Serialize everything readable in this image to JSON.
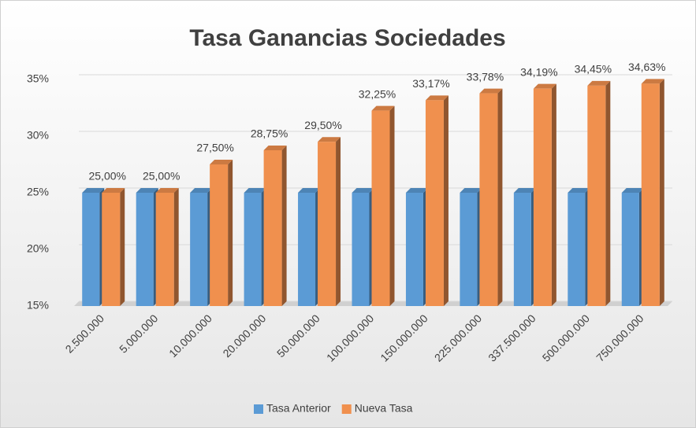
{
  "chart_data": {
    "type": "bar3d",
    "title": "Tasa Ganancias Sociedades",
    "categories": [
      "2.500.000",
      "5.000.000",
      "10.000.000",
      "20.000.000",
      "50.000.000",
      "100.000.000",
      "150.000.000",
      "225.000.000",
      "337.500.000",
      "500.000.000",
      "750.000.000"
    ],
    "series": [
      {
        "name": "Tasa Anterior",
        "color": "#5b9bd5",
        "values": [
          25,
          25,
          25,
          25,
          25,
          25,
          25,
          25,
          25,
          25,
          25
        ]
      },
      {
        "name": "Nueva Tasa",
        "color": "#f0904e",
        "values": [
          25,
          25,
          27.5,
          28.75,
          29.5,
          32.25,
          33.17,
          33.78,
          34.19,
          34.45,
          34.63
        ],
        "value_labels": [
          "25,00%",
          "25,00%",
          "27,50%",
          "28,75%",
          "29,50%",
          "32,25%",
          "33,17%",
          "33,78%",
          "34,19%",
          "34,45%",
          "34,63%"
        ]
      }
    ],
    "ylim": [
      15,
      35
    ],
    "yticks": [
      {
        "value": 15,
        "label": "15%"
      },
      {
        "value": 20,
        "label": "20%"
      },
      {
        "value": 25,
        "label": "25%"
      },
      {
        "value": 30,
        "label": "30%"
      },
      {
        "value": 35,
        "label": "35%"
      }
    ],
    "grid": true,
    "legend": "bottom"
  }
}
